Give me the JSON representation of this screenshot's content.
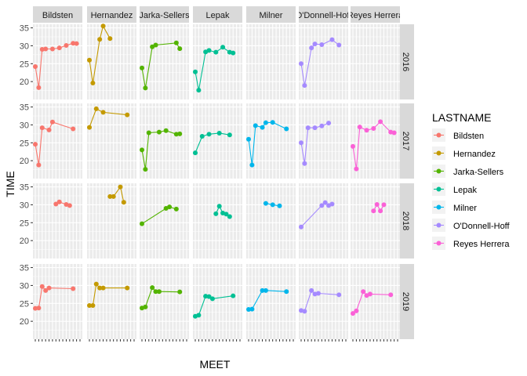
{
  "chart_data": {
    "type": "line",
    "xlabel": "MEET",
    "ylabel": "TIME",
    "ylim": [
      15,
      36
    ],
    "yticks": [
      20,
      25,
      30,
      35
    ],
    "grid": true,
    "legend_position": "right",
    "legend_title": "LASTNAME",
    "column_facets": [
      "Bildsten",
      "Hernandez",
      "Jarka-Sellers",
      "Lepak",
      "Milner",
      "O'Donnell-Hoff",
      "Reyes Herrera"
    ],
    "row_facets": [
      "2016",
      "2017",
      "2018",
      "2019"
    ],
    "x_tick_count": 14,
    "series": [
      {
        "name": "Bildsten",
        "color": "#F8766D"
      },
      {
        "name": "Hernandez",
        "color": "#C49A00"
      },
      {
        "name": "Jarka-Sellers",
        "color": "#53B400"
      },
      {
        "name": "Lepak",
        "color": "#00C094"
      },
      {
        "name": "Milner",
        "color": "#00B6EB"
      },
      {
        "name": "O'Donnell-Hoff",
        "color": "#A58AFF"
      },
      {
        "name": "Reyes Herrera",
        "color": "#FB61D7"
      }
    ],
    "panels": [
      {
        "row": 0,
        "col": 0,
        "points": [
          [
            1,
            24.2
          ],
          [
            2,
            18.3
          ],
          [
            3,
            29.0
          ],
          [
            4,
            29.1
          ],
          [
            6,
            29.1
          ],
          [
            8,
            29.4
          ],
          [
            10,
            30.1
          ],
          [
            12,
            30.7
          ],
          [
            13,
            30.6
          ]
        ]
      },
      {
        "row": 0,
        "col": 1,
        "points": [
          [
            1,
            26.0
          ],
          [
            2,
            19.6
          ],
          [
            4,
            31.8
          ],
          [
            5,
            35.5
          ],
          [
            7,
            32.0
          ]
        ]
      },
      {
        "row": 0,
        "col": 2,
        "points": [
          [
            1,
            23.8
          ],
          [
            2,
            18.2
          ],
          [
            4,
            29.7
          ],
          [
            5,
            30.2
          ],
          [
            11,
            30.8
          ],
          [
            12,
            29.2
          ]
        ]
      },
      {
        "row": 0,
        "col": 3,
        "points": [
          [
            1,
            22.7
          ],
          [
            2,
            17.6
          ],
          [
            4,
            28.3
          ],
          [
            5,
            28.7
          ],
          [
            7,
            28.2
          ],
          [
            9,
            29.6
          ],
          [
            11,
            28.2
          ],
          [
            12,
            28.0
          ]
        ]
      },
      {
        "row": 0,
        "col": 4,
        "points": []
      },
      {
        "row": 0,
        "col": 5,
        "points": [
          [
            1,
            25.0
          ],
          [
            2,
            18.9
          ],
          [
            4,
            29.4
          ],
          [
            5,
            30.5
          ],
          [
            7,
            30.3
          ],
          [
            10,
            31.7
          ],
          [
            12,
            30.2
          ]
        ]
      },
      {
        "row": 0,
        "col": 6,
        "points": []
      },
      {
        "row": 1,
        "col": 0,
        "points": [
          [
            1,
            24.6
          ],
          [
            2,
            18.8
          ],
          [
            3,
            29.2
          ],
          [
            5,
            28.6
          ],
          [
            6,
            30.8
          ],
          [
            12,
            28.9
          ]
        ]
      },
      {
        "row": 1,
        "col": 1,
        "points": [
          [
            1,
            29.3
          ],
          [
            3,
            34.5
          ],
          [
            5,
            33.5
          ],
          [
            12,
            32.8
          ]
        ]
      },
      {
        "row": 1,
        "col": 2,
        "points": [
          [
            1,
            23.0
          ],
          [
            2,
            17.6
          ],
          [
            3,
            27.8
          ],
          [
            6,
            28.0
          ],
          [
            8,
            28.4
          ],
          [
            11,
            27.4
          ],
          [
            12,
            27.5
          ]
        ]
      },
      {
        "row": 1,
        "col": 3,
        "points": [
          [
            1,
            22.2
          ],
          [
            3,
            26.8
          ],
          [
            5,
            27.4
          ],
          [
            8,
            27.7
          ],
          [
            11,
            27.2
          ]
        ]
      },
      {
        "row": 1,
        "col": 4,
        "points": [
          [
            1,
            26.0
          ],
          [
            2,
            18.8
          ],
          [
            3,
            29.8
          ],
          [
            5,
            29.3
          ],
          [
            6,
            30.6
          ],
          [
            8,
            30.7
          ],
          [
            12,
            28.9
          ]
        ]
      },
      {
        "row": 1,
        "col": 5,
        "points": [
          [
            1,
            25.0
          ],
          [
            2,
            19.2
          ],
          [
            3,
            29.2
          ],
          [
            5,
            29.2
          ],
          [
            7,
            29.7
          ],
          [
            9,
            30.5
          ]
        ]
      },
      {
        "row": 1,
        "col": 6,
        "points": [
          [
            1,
            24.0
          ],
          [
            2,
            17.7
          ],
          [
            3,
            29.4
          ],
          [
            5,
            28.5
          ],
          [
            7,
            29.0
          ],
          [
            9,
            30.9
          ],
          [
            12,
            28.0
          ],
          [
            13,
            27.8
          ]
        ]
      },
      {
        "row": 2,
        "col": 0,
        "points": [
          [
            7,
            30.2
          ],
          [
            8,
            30.8
          ],
          [
            10,
            30.1
          ],
          [
            11,
            29.8
          ]
        ]
      },
      {
        "row": 2,
        "col": 1,
        "points": [
          [
            7,
            32.3
          ],
          [
            8,
            32.3
          ],
          [
            10,
            35.0
          ],
          [
            11,
            30.7
          ]
        ]
      },
      {
        "row": 2,
        "col": 2,
        "points": [
          [
            1,
            24.7
          ],
          [
            8,
            29.0
          ],
          [
            9,
            29.4
          ],
          [
            11,
            28.8
          ]
        ]
      },
      {
        "row": 2,
        "col": 3,
        "points": [
          [
            7,
            27.5
          ],
          [
            8,
            29.6
          ],
          [
            9,
            27.7
          ],
          [
            10,
            27.4
          ],
          [
            11,
            26.7
          ]
        ]
      },
      {
        "row": 2,
        "col": 4,
        "points": [
          [
            6,
            30.4
          ],
          [
            8,
            30.0
          ],
          [
            10,
            29.7
          ]
        ]
      },
      {
        "row": 2,
        "col": 5,
        "points": [
          [
            1,
            23.8
          ],
          [
            7,
            29.8
          ],
          [
            8,
            30.6
          ],
          [
            9,
            29.8
          ],
          [
            10,
            30.2
          ]
        ]
      },
      {
        "row": 2,
        "col": 6,
        "points": [
          [
            7,
            28.3
          ],
          [
            8,
            30.1
          ],
          [
            9,
            28.3
          ],
          [
            10,
            30.0
          ]
        ]
      },
      {
        "row": 3,
        "col": 0,
        "points": [
          [
            1,
            23.6
          ],
          [
            2,
            23.7
          ],
          [
            3,
            29.7
          ],
          [
            4,
            28.6
          ],
          [
            5,
            29.3
          ],
          [
            12,
            29.1
          ]
        ]
      },
      {
        "row": 3,
        "col": 1,
        "points": [
          [
            1,
            24.4
          ],
          [
            2,
            24.4
          ],
          [
            3,
            30.4
          ],
          [
            4,
            29.3
          ],
          [
            5,
            29.3
          ],
          [
            12,
            29.3
          ]
        ]
      },
      {
        "row": 3,
        "col": 2,
        "points": [
          [
            1,
            23.7
          ],
          [
            2,
            24.0
          ],
          [
            4,
            29.4
          ],
          [
            5,
            28.3
          ],
          [
            6,
            28.3
          ],
          [
            12,
            28.2
          ]
        ]
      },
      {
        "row": 3,
        "col": 3,
        "points": [
          [
            1,
            21.4
          ],
          [
            2,
            21.7
          ],
          [
            4,
            27.0
          ],
          [
            5,
            26.9
          ],
          [
            6,
            26.3
          ],
          [
            12,
            27.1
          ]
        ]
      },
      {
        "row": 3,
        "col": 4,
        "points": [
          [
            1,
            23.3
          ],
          [
            2,
            23.4
          ],
          [
            5,
            28.6
          ],
          [
            6,
            28.6
          ],
          [
            12,
            28.3
          ]
        ]
      },
      {
        "row": 3,
        "col": 5,
        "points": [
          [
            1,
            23.0
          ],
          [
            2,
            22.8
          ],
          [
            4,
            28.6
          ],
          [
            5,
            27.6
          ],
          [
            6,
            27.8
          ],
          [
            12,
            27.4
          ]
        ]
      },
      {
        "row": 3,
        "col": 6,
        "points": [
          [
            1,
            22.2
          ],
          [
            2,
            22.9
          ],
          [
            4,
            28.3
          ],
          [
            5,
            27.2
          ],
          [
            6,
            27.6
          ],
          [
            12,
            27.4
          ]
        ]
      }
    ]
  }
}
